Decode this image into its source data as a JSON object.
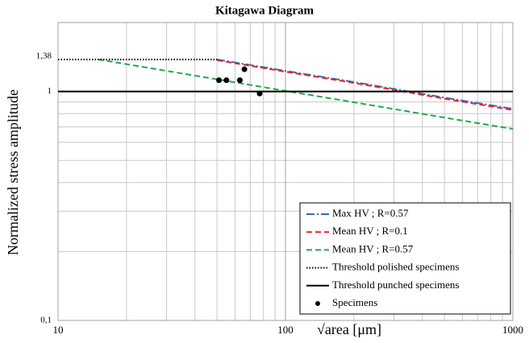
{
  "chart_data": {
    "type": "line",
    "title": "Kitagawa Diagram",
    "xlabel": "√area [μm]",
    "ylabel": "Normalized stress amplitude",
    "xscale": "log",
    "yscale": "log",
    "xlim": [
      10,
      1000
    ],
    "ylim": [
      0.1,
      2
    ],
    "xticks": [
      10,
      100,
      1000
    ],
    "yticks": [
      {
        "value": 0.1,
        "label": "0,1"
      },
      1,
      {
        "value": 1.38,
        "label": "1,38"
      }
    ],
    "xminorticks": [
      20,
      30,
      40,
      50,
      60,
      70,
      80,
      90,
      200,
      300,
      400,
      500,
      600,
      700,
      800,
      900
    ],
    "yminorticks": [
      0.2,
      0.3,
      0.4,
      0.5,
      0.6,
      0.7,
      0.8,
      0.9
    ],
    "grid": true,
    "legend": "lower right",
    "series": [
      {
        "name": "Max HV ; R=0.57",
        "color": "#2e6fb7",
        "style": "dashdot",
        "x": [
          50,
          100,
          200,
          500,
          1000
        ],
        "values": [
          1.38,
          1.23,
          1.1,
          0.94,
          0.84
        ]
      },
      {
        "name": "Mean HV ; R=0.1",
        "color": "#e8202a",
        "style": "dashed",
        "x": [
          50,
          100,
          200,
          500,
          1000
        ],
        "values": [
          1.37,
          1.22,
          1.09,
          0.93,
          0.83
        ]
      },
      {
        "name": "Mean HV ; R=0.57",
        "color": "#22a84a",
        "style": "dashed",
        "x": [
          15,
          50,
          100,
          200,
          500,
          1000
        ],
        "values": [
          1.38,
          1.13,
          1.006,
          0.897,
          0.769,
          0.686
        ]
      },
      {
        "name": "Threshold polished specimens",
        "color": "#000000",
        "style": "dotted",
        "x": [
          10,
          50
        ],
        "values": [
          1.38,
          1.38
        ]
      },
      {
        "name": "Threshold punched specimens",
        "color": "#000000",
        "style": "solid",
        "x": [
          10,
          1000
        ],
        "values": [
          1,
          1
        ]
      },
      {
        "name": "Specimens",
        "color": "#000000",
        "style": "markers",
        "x": [
          51,
          55,
          63,
          66,
          77
        ],
        "values": [
          1.12,
          1.12,
          1.12,
          1.25,
          0.98
        ]
      }
    ]
  }
}
